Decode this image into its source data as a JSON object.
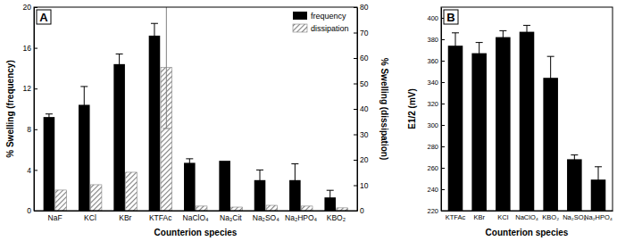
{
  "chart_data": [
    {
      "type": "bar",
      "title": "A",
      "categories": [
        "NaF",
        "KCl",
        "KBr",
        "KTFAc",
        "NaClO₄",
        "Na₃Cit",
        "Na₂SO₄",
        "Na₂HPO₄",
        "KBO₂"
      ],
      "x_label": "Counterion species",
      "y_label": "% Swelling (frequency)",
      "y2_label": "% Swelling (dissipation)",
      "series": [
        {
          "name": "frequency",
          "color": "#000000",
          "values": [
            9.2,
            10.4,
            14.4,
            17.2,
            4.7,
            4.9,
            3.0,
            3.0,
            1.3
          ],
          "errors": [
            0.3,
            1.8,
            1.0,
            1.2,
            0.4,
            null,
            1.0,
            1.6,
            0.7
          ]
        },
        {
          "name": "dissipation",
          "color": "#808080",
          "axis": "y2",
          "values": [
            8.1,
            10.2,
            15.1,
            56.3,
            1.8,
            1.4,
            2.1,
            1.8,
            1.1
          ],
          "errors": [
            null,
            null,
            null,
            24,
            null,
            null,
            null,
            null,
            null
          ]
        }
      ],
      "ylim": [
        0,
        20
      ],
      "yticks": [
        0,
        4,
        8,
        12,
        16,
        20
      ],
      "y2lim": [
        0,
        80
      ],
      "y2ticks": [
        0,
        10,
        20,
        30,
        40,
        50,
        60,
        70,
        80
      ],
      "legend": "upper right"
    },
    {
      "type": "bar",
      "title": "B",
      "categories": [
        "KTFAc",
        "KBr",
        "KCl",
        "NaClO₄",
        "KBO₂",
        "Na₂SO₄",
        "Na₂HPO₄"
      ],
      "x_label": "Counterion species",
      "y_label": "E1/2 (mV)",
      "values": [
        374,
        367,
        382,
        387,
        344,
        268,
        249
      ],
      "errors": [
        12,
        10,
        6,
        6,
        20,
        4,
        12
      ],
      "color": "#000000",
      "ylim": [
        220,
        410
      ],
      "yticks": [
        220,
        240,
        260,
        280,
        300,
        320,
        340,
        360,
        380,
        400
      ]
    }
  ]
}
